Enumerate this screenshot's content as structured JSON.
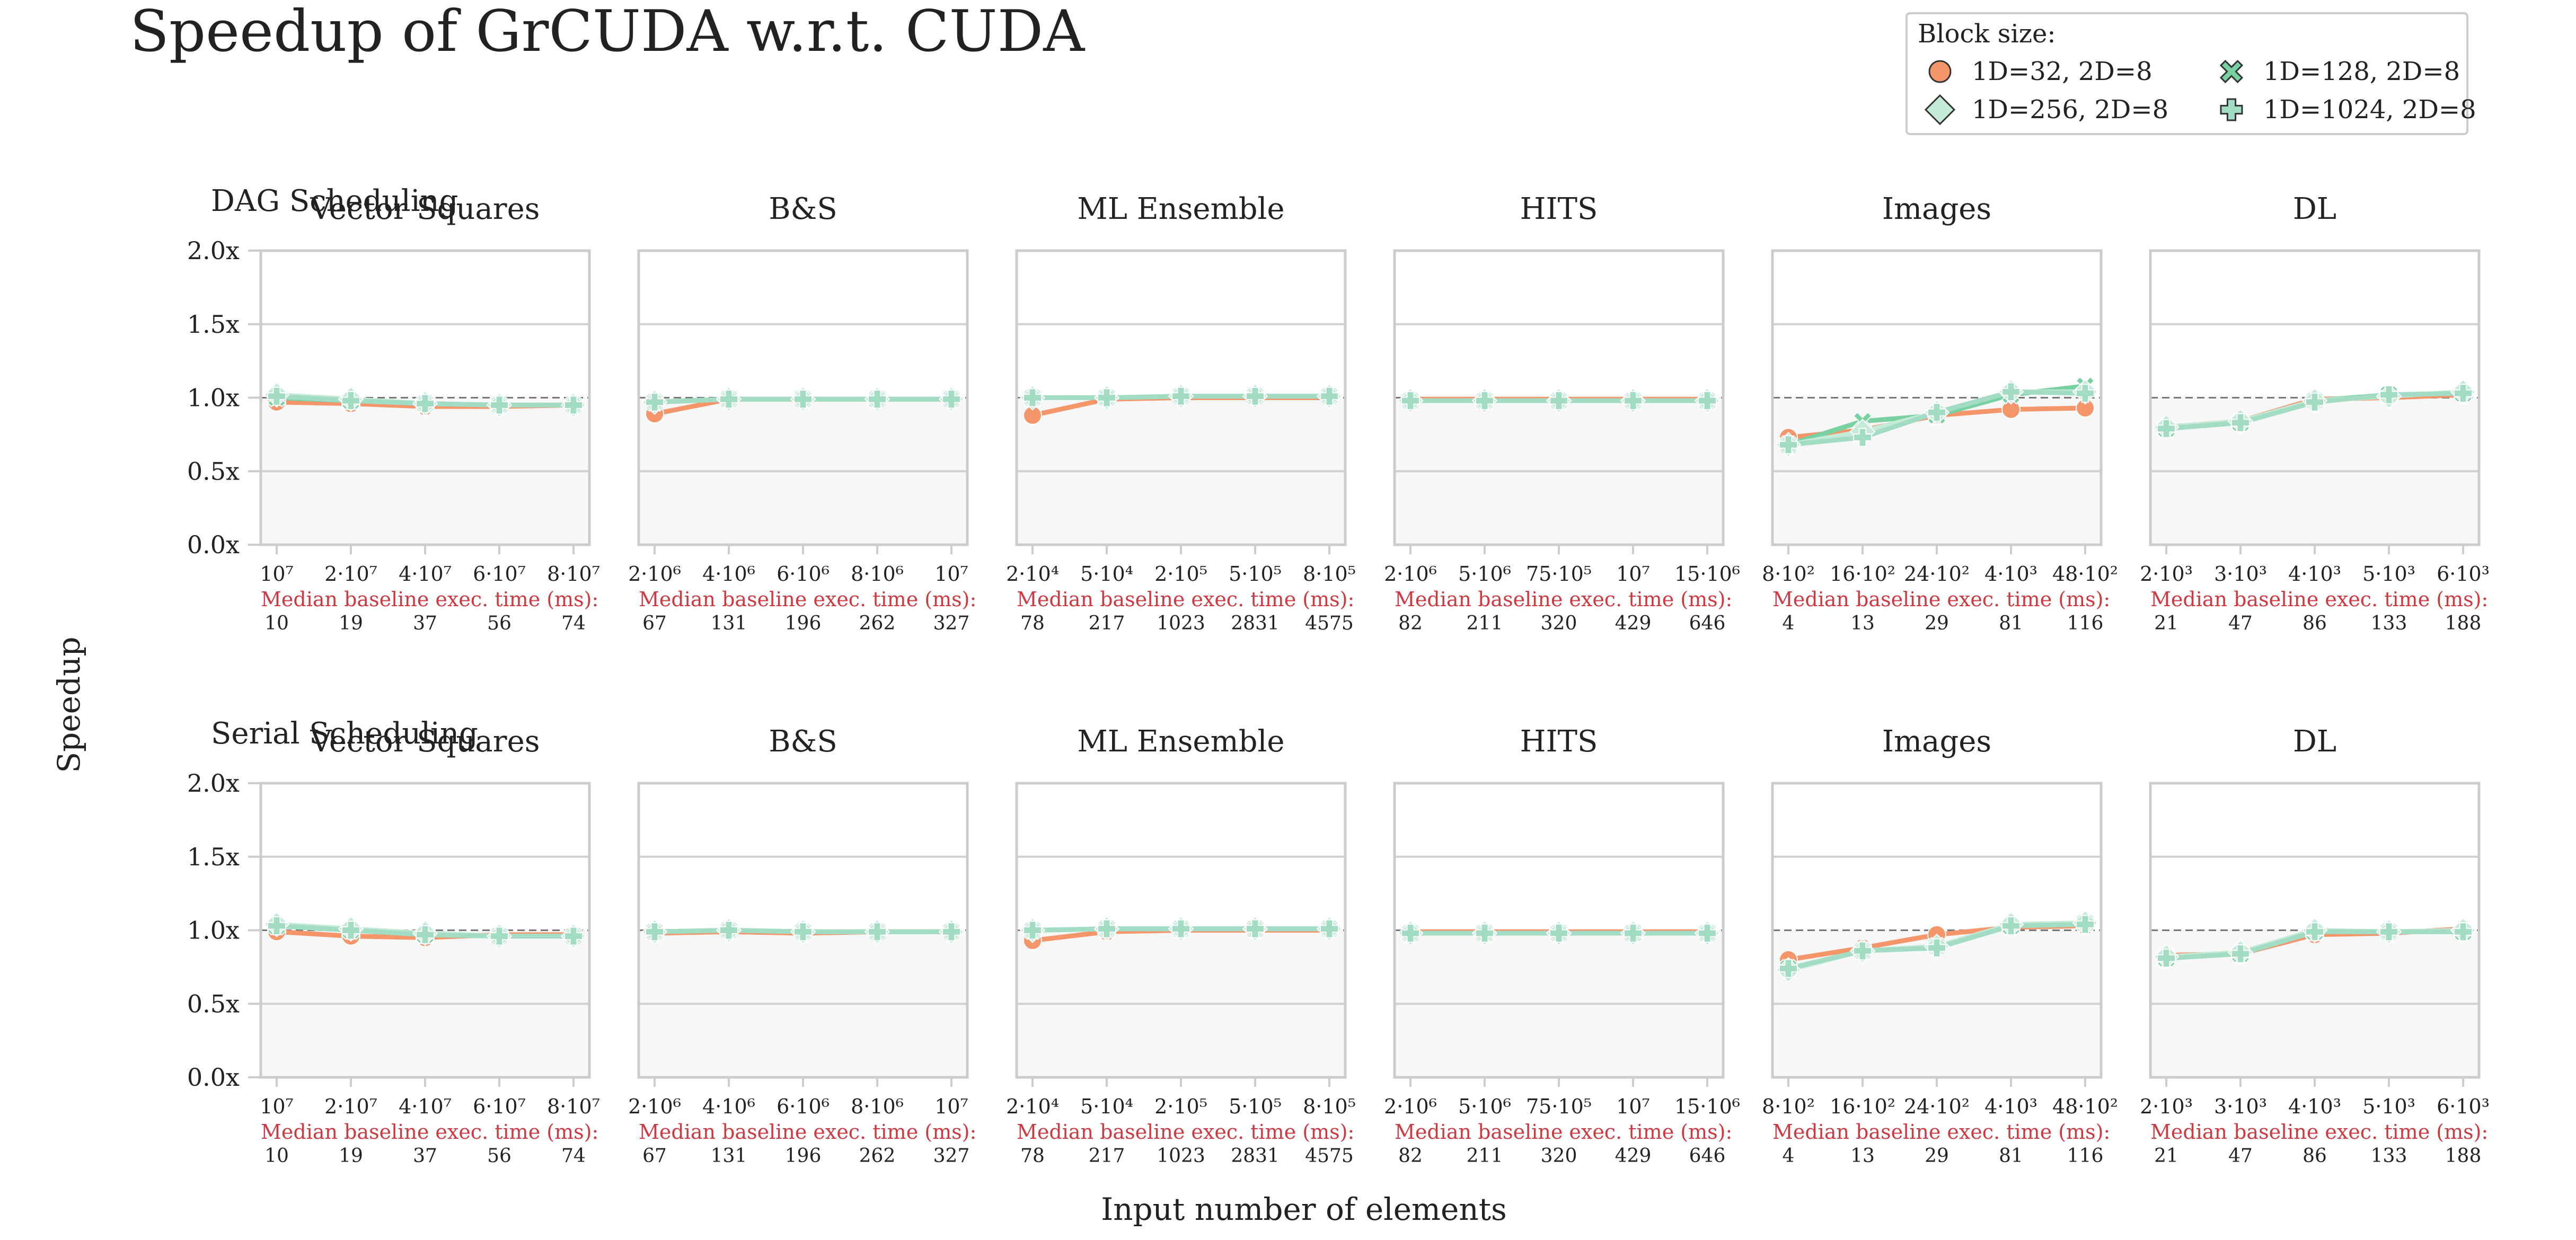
{
  "chart_data": {
    "type": "line",
    "title": "Speedup of GrCUDA w.r.t. CUDA",
    "ylabel": "Speedup",
    "xlabel": "Input number of elements",
    "baseline_label": "Median baseline exec. time (ms):",
    "ylim": [
      0,
      2
    ],
    "yticks": [
      "0.0x",
      "0.5x",
      "1.0x",
      "1.5x",
      "2.0x"
    ],
    "reference_line": 1.0,
    "legend": {
      "title": "Block size:",
      "position": "top-right",
      "entries": [
        {
          "name": "1D=32, 2D=8",
          "color": "#f4956a",
          "marker": "circle"
        },
        {
          "name": "1D=256, 2D=8",
          "color": "#c4ead8",
          "marker": "diamond"
        },
        {
          "name": "1D=128, 2D=8",
          "color": "#79d1a2",
          "marker": "x"
        },
        {
          "name": "1D=1024, 2D=8",
          "color": "#a3dcc4",
          "marker": "plus"
        }
      ]
    },
    "series_names": [
      "1D=32, 2D=8",
      "1D=128, 2D=8",
      "1D=256, 2D=8",
      "1D=1024, 2D=8"
    ],
    "panels": [
      {
        "row": "DAG Scheduling",
        "title": "Vector Squares",
        "x": [
          "10⁷",
          "2·10⁷",
          "4·10⁷",
          "6·10⁷",
          "8·10⁷"
        ],
        "baseline": [
          "10",
          "19",
          "37",
          "56",
          "74"
        ],
        "series": [
          [
            0.97,
            0.96,
            0.94,
            0.94,
            0.95
          ],
          [
            1.0,
            0.98,
            0.96,
            0.95,
            0.95
          ],
          [
            1.02,
            0.99,
            0.96,
            0.95,
            0.95
          ],
          [
            1.01,
            0.98,
            0.96,
            0.95,
            0.95
          ]
        ]
      },
      {
        "row": "DAG Scheduling",
        "title": "B&S",
        "x": [
          "2·10⁶",
          "4·10⁶",
          "6·10⁶",
          "8·10⁶",
          "10⁷"
        ],
        "baseline": [
          "67",
          "131",
          "196",
          "262",
          "327"
        ],
        "series": [
          [
            0.89,
            0.99,
            0.99,
            0.99,
            0.99
          ],
          [
            0.97,
            0.99,
            0.99,
            0.99,
            0.99
          ],
          [
            0.97,
            0.99,
            0.99,
            0.99,
            0.99
          ],
          [
            0.97,
            0.99,
            0.99,
            0.99,
            0.99
          ]
        ]
      },
      {
        "row": "DAG Scheduling",
        "title": "ML Ensemble",
        "x": [
          "2·10⁴",
          "5·10⁴",
          "2·10⁵",
          "5·10⁵",
          "8·10⁵"
        ],
        "baseline": [
          "78",
          "217",
          "1023",
          "2831",
          "4575"
        ],
        "series": [
          [
            0.88,
            0.99,
            1.0,
            1.0,
            1.0
          ],
          [
            1.0,
            1.0,
            1.01,
            1.01,
            1.01
          ],
          [
            1.0,
            1.0,
            1.01,
            1.01,
            1.01
          ],
          [
            1.0,
            1.0,
            1.01,
            1.01,
            1.01
          ]
        ]
      },
      {
        "row": "DAG Scheduling",
        "title": "HITS",
        "x": [
          "2·10⁶",
          "5·10⁶",
          "75·10⁵",
          "10⁷",
          "15·10⁶"
        ],
        "baseline": [
          "82",
          "211",
          "320",
          "429",
          "646"
        ],
        "series": [
          [
            0.99,
            0.99,
            0.99,
            0.99,
            0.99
          ],
          [
            0.98,
            0.98,
            0.98,
            0.98,
            0.98
          ],
          [
            0.98,
            0.98,
            0.98,
            0.98,
            0.98
          ],
          [
            0.98,
            0.98,
            0.98,
            0.98,
            0.98
          ]
        ]
      },
      {
        "row": "DAG Scheduling",
        "title": "Images",
        "x": [
          "8·10²",
          "16·10²",
          "24·10²",
          "4·10³",
          "48·10²"
        ],
        "baseline": [
          "4",
          "13",
          "29",
          "81",
          "116"
        ],
        "series": [
          [
            0.73,
            0.78,
            0.88,
            0.92,
            0.93
          ],
          [
            0.68,
            0.84,
            0.88,
            1.02,
            1.08
          ],
          [
            0.68,
            0.77,
            0.9,
            1.04,
            1.04
          ],
          [
            0.68,
            0.73,
            0.9,
            1.04,
            1.03
          ]
        ]
      },
      {
        "row": "DAG Scheduling",
        "title": "DL",
        "x": [
          "2·10³",
          "3·10³",
          "4·10³",
          "5·10³",
          "6·10³"
        ],
        "baseline": [
          "21",
          "47",
          "86",
          "133",
          "188"
        ],
        "series": [
          [
            0.8,
            0.84,
            0.99,
            1.0,
            1.02
          ],
          [
            0.79,
            0.83,
            0.98,
            1.02,
            1.03
          ],
          [
            0.8,
            0.84,
            0.98,
            1.01,
            1.04
          ],
          [
            0.79,
            0.83,
            0.97,
            1.02,
            1.03
          ]
        ]
      },
      {
        "row": "Serial Scheduling",
        "title": "Vector Squares",
        "x": [
          "10⁷",
          "2·10⁷",
          "4·10⁷",
          "6·10⁷",
          "8·10⁷"
        ],
        "baseline": [
          "10",
          "19",
          "37",
          "56",
          "74"
        ],
        "series": [
          [
            0.99,
            0.96,
            0.95,
            0.97,
            0.97
          ],
          [
            1.03,
            1.0,
            0.97,
            0.96,
            0.96
          ],
          [
            1.04,
            1.01,
            0.98,
            0.96,
            0.96
          ],
          [
            1.03,
            1.0,
            0.97,
            0.96,
            0.96
          ]
        ]
      },
      {
        "row": "Serial Scheduling",
        "title": "B&S",
        "x": [
          "2·10⁶",
          "4·10⁶",
          "6·10⁶",
          "8·10⁶",
          "10⁷"
        ],
        "baseline": [
          "67",
          "131",
          "196",
          "262",
          "327"
        ],
        "series": [
          [
            0.98,
            0.99,
            0.98,
            0.99,
            0.99
          ],
          [
            0.99,
            1.0,
            0.99,
            0.99,
            0.99
          ],
          [
            0.99,
            1.0,
            0.99,
            0.99,
            0.99
          ],
          [
            0.99,
            1.0,
            0.99,
            0.99,
            0.99
          ]
        ]
      },
      {
        "row": "Serial Scheduling",
        "title": "ML Ensemble",
        "x": [
          "2·10⁴",
          "5·10⁴",
          "2·10⁵",
          "5·10⁵",
          "8·10⁵"
        ],
        "baseline": [
          "78",
          "217",
          "1023",
          "2831",
          "4575"
        ],
        "series": [
          [
            0.93,
            0.99,
            1.0,
            1.0,
            1.0
          ],
          [
            1.0,
            1.01,
            1.01,
            1.01,
            1.01
          ],
          [
            1.0,
            1.01,
            1.01,
            1.01,
            1.01
          ],
          [
            1.0,
            1.01,
            1.01,
            1.01,
            1.01
          ]
        ]
      },
      {
        "row": "Serial Scheduling",
        "title": "HITS",
        "x": [
          "2·10⁶",
          "5·10⁶",
          "75·10⁵",
          "10⁷",
          "15·10⁶"
        ],
        "baseline": [
          "82",
          "211",
          "320",
          "429",
          "646"
        ],
        "series": [
          [
            0.99,
            0.99,
            0.99,
            0.99,
            0.99
          ],
          [
            0.98,
            0.98,
            0.98,
            0.98,
            0.98
          ],
          [
            0.98,
            0.98,
            0.98,
            0.98,
            0.98
          ],
          [
            0.98,
            0.98,
            0.98,
            0.98,
            0.98
          ]
        ]
      },
      {
        "row": "Serial Scheduling",
        "title": "Images",
        "x": [
          "8·10²",
          "16·10²",
          "24·10²",
          "4·10³",
          "48·10²"
        ],
        "baseline": [
          "4",
          "13",
          "29",
          "81",
          "116"
        ],
        "series": [
          [
            0.8,
            0.88,
            0.97,
            1.02,
            1.03
          ],
          [
            0.74,
            0.86,
            0.89,
            1.03,
            1.05
          ],
          [
            0.73,
            0.86,
            0.89,
            1.04,
            1.05
          ],
          [
            0.74,
            0.86,
            0.88,
            1.03,
            1.04
          ]
        ]
      },
      {
        "row": "Serial Scheduling",
        "title": "DL",
        "x": [
          "2·10³",
          "3·10³",
          "4·10³",
          "5·10³",
          "6·10³"
        ],
        "baseline": [
          "21",
          "47",
          "86",
          "133",
          "188"
        ],
        "series": [
          [
            0.83,
            0.84,
            0.97,
            0.98,
            1.01
          ],
          [
            0.81,
            0.84,
            0.99,
            0.99,
            0.99
          ],
          [
            0.82,
            0.85,
            1.0,
            0.99,
            1.0
          ],
          [
            0.81,
            0.84,
            0.99,
            0.99,
            0.99
          ]
        ]
      }
    ]
  }
}
